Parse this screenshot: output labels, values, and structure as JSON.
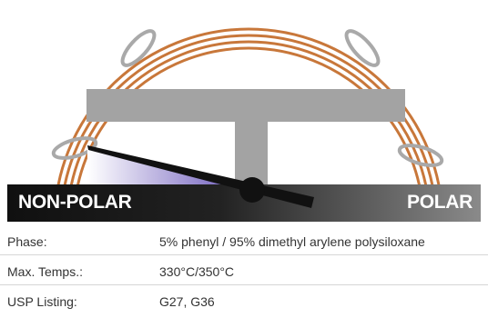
{
  "scale": {
    "left_label": "NON-POLAR",
    "right_label": "POLAR",
    "polarity_level": 0.05
  },
  "colors": {
    "coil": "#c8773a",
    "bar": "#1a1a1a",
    "needle": "#111111",
    "t_support": "#a3a3a3",
    "clamp": "#aaaaaa",
    "wedge": "#8878c8"
  },
  "specs": {
    "rows": [
      {
        "label": "Phase:",
        "value": "5% phenyl / 95% dimethyl arylene polysiloxane"
      },
      {
        "label": "Max. Temps.:",
        "value": "330°C/350°C"
      },
      {
        "label": "USP Listing:",
        "value": "G27, G36"
      }
    ]
  }
}
